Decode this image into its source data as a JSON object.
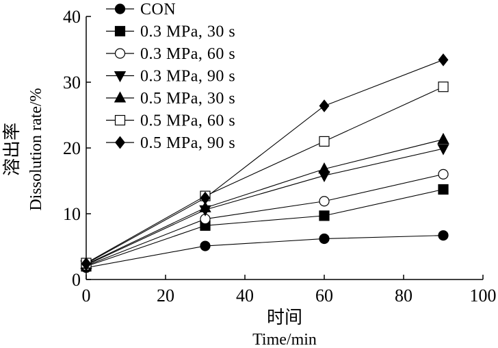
{
  "chart_data": {
    "type": "line",
    "title": "",
    "xlabel_cn": "时间",
    "xlabel": "Time/min",
    "ylabel_cn": "溶出率",
    "ylabel": "Dissolution rate/%",
    "xlim": [
      0,
      100
    ],
    "ylim": [
      0,
      40
    ],
    "xticks": [
      0,
      20,
      40,
      60,
      80,
      100
    ],
    "yticks": [
      0,
      10,
      20,
      30,
      40
    ],
    "x": [
      0,
      30,
      60,
      90
    ],
    "grid": false,
    "legend_position": "top-left",
    "series": [
      {
        "name": "CON",
        "marker": "circle-filled",
        "values": [
          1.8,
          5.1,
          6.2,
          6.7
        ]
      },
      {
        "name": "0.3 MPa, 30 s",
        "marker": "square-filled",
        "values": [
          2.0,
          8.2,
          9.7,
          13.7
        ]
      },
      {
        "name": "0.3 MPa, 60 s",
        "marker": "circle-open",
        "values": [
          2.1,
          9.2,
          11.9,
          16.0
        ]
      },
      {
        "name": "0.3 MPa, 90 s",
        "marker": "triangle-down-filled",
        "values": [
          2.2,
          10.6,
          15.8,
          19.9
        ]
      },
      {
        "name": "0.5 MPa, 30 s",
        "marker": "triangle-up-filled",
        "values": [
          2.3,
          10.9,
          16.8,
          21.3
        ]
      },
      {
        "name": "0.5 MPa, 60 s",
        "marker": "square-open",
        "values": [
          2.5,
          12.7,
          21.0,
          29.3
        ]
      },
      {
        "name": "0.5 MPa, 90 s",
        "marker": "diamond-filled",
        "values": [
          2.4,
          12.4,
          26.4,
          33.4
        ]
      }
    ]
  }
}
